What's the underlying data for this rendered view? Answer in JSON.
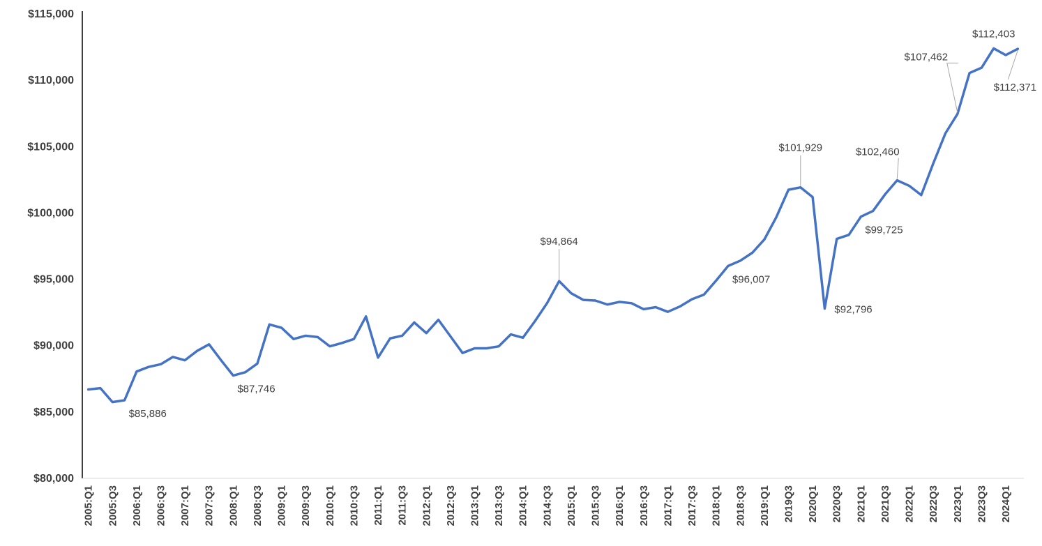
{
  "colors": {
    "series": "#4472C4",
    "axis": "#000000",
    "text": "#404040",
    "leader": "#a6a6a6"
  },
  "chart_data": {
    "type": "line",
    "title": "",
    "xlabel": "",
    "ylabel": "",
    "ylim": [
      80000,
      115000
    ],
    "yticks": [
      80000,
      85000,
      90000,
      95000,
      100000,
      105000,
      110000,
      115000
    ],
    "ytick_labels": [
      "$80,000",
      "$85,000",
      "$90,000",
      "$95,000",
      "$100,000",
      "$105,000",
      "$110,000",
      "$115,000"
    ],
    "grid": false,
    "legend": "none",
    "x": [
      "2005:Q1",
      "2005:Q2",
      "2005:Q3",
      "2005:Q4",
      "2006:Q1",
      "2006:Q2",
      "2006:Q3",
      "2006:Q4",
      "2007:Q1",
      "2007:Q2",
      "2007:Q3",
      "2007:Q4",
      "2008:Q1",
      "2008:Q2",
      "2008:Q3",
      "2008:Q4",
      "2009:Q1",
      "2009:Q2",
      "2009:Q3",
      "2009:Q4",
      "2010:Q1",
      "2010:Q2",
      "2010:Q3",
      "2010:Q4",
      "2011:Q1",
      "2011:Q2",
      "2011:Q3",
      "2011:Q4",
      "2012:Q1",
      "2012:Q2",
      "2012:Q3",
      "2012:Q4",
      "2013:Q1",
      "2013:Q2",
      "2013:Q3",
      "2013:Q4",
      "2014:Q1",
      "2014:Q2",
      "2014:Q3",
      "2014:Q4",
      "2015:Q1",
      "2015:Q2",
      "2015:Q3",
      "2015:Q4",
      "2016:Q1",
      "2016:Q2",
      "2016:Q3",
      "2016:Q4",
      "2017:Q1",
      "2017:Q2",
      "2017:Q3",
      "2017:Q4",
      "2018:Q1",
      "2018:Q2",
      "2018:Q3",
      "2018:Q4",
      "2019:Q1",
      "2019Q2",
      "2019Q3",
      "2019Q4",
      "2020Q1",
      "2020Q2",
      "2020Q3",
      "2020Q4",
      "2021Q1",
      "2021Q2",
      "2021Q3",
      "2021Q4",
      "2022Q1",
      "2022Q2",
      "2022Q3",
      "2022Q4",
      "2023Q1",
      "2023Q2",
      "2023Q3",
      "2023Q4",
      "2024Q1",
      "2024Q2"
    ],
    "tick_labels": [
      "2005:Q1",
      "",
      "2005:Q3",
      "",
      "2006:Q1",
      "",
      "2006:Q3",
      "",
      "2007:Q1",
      "",
      "2007:Q3",
      "",
      "2008:Q1",
      "",
      "2008:Q3",
      "",
      "2009:Q1",
      "",
      "2009:Q3",
      "",
      "2010:Q1",
      "",
      "2010:Q3",
      "",
      "2011:Q1",
      "",
      "2011:Q3",
      "",
      "2012:Q1",
      "",
      "2012:Q3",
      "",
      "2013:Q1",
      "",
      "2013:Q3",
      "",
      "2014:Q1",
      "",
      "2014:Q3",
      "",
      "2015:Q1",
      "",
      "2015:Q3",
      "",
      "2016:Q1",
      "",
      "2016:Q3",
      "",
      "2017:Q1",
      "",
      "2017:Q3",
      "",
      "2018:Q1",
      "",
      "2018:Q3",
      "",
      "2019:Q1",
      "",
      "2019Q3",
      "",
      "2020Q1",
      "",
      "2020Q3",
      "",
      "2021Q1",
      "",
      "2021Q3",
      "",
      "2022Q1",
      "",
      "2022Q3",
      "",
      "2023Q1",
      "",
      "2023Q3",
      "",
      "2024Q1",
      ""
    ],
    "series": [
      {
        "name": "",
        "color": "#4472C4",
        "values": [
          86700,
          86800,
          85750,
          85886,
          88050,
          88400,
          88600,
          89150,
          88900,
          89600,
          90100,
          88900,
          87746,
          88000,
          88650,
          91600,
          91350,
          90500,
          90750,
          90650,
          89950,
          90200,
          90500,
          92200,
          89100,
          90550,
          90750,
          91750,
          90950,
          91950,
          90700,
          89450,
          89800,
          89800,
          89950,
          90850,
          90600,
          91850,
          93200,
          94864,
          93950,
          93450,
          93400,
          93100,
          93300,
          93200,
          92750,
          92900,
          92550,
          92950,
          93500,
          93850,
          94900,
          96007,
          96400,
          97000,
          98000,
          99700,
          101750,
          101929,
          101200,
          92796,
          98050,
          98350,
          99725,
          100150,
          101400,
          102460,
          102050,
          101350,
          103750,
          106000,
          107462,
          110550,
          110950,
          112403,
          111900,
          112371
        ]
      }
    ],
    "annotations": [
      {
        "index": 3,
        "text": "$85,886",
        "pos": "below-right"
      },
      {
        "index": 12,
        "text": "$87,746",
        "pos": "below-right"
      },
      {
        "index": 39,
        "text": "$94,864",
        "pos": "above",
        "leader": true
      },
      {
        "index": 53,
        "text": "$96,007",
        "pos": "below-right"
      },
      {
        "index": 59,
        "text": "$101,929",
        "pos": "above",
        "leader": true
      },
      {
        "index": 61,
        "text": "$92,796",
        "pos": "right"
      },
      {
        "index": 64,
        "text": "$99,725",
        "pos": "below-right"
      },
      {
        "index": 67,
        "text": "$102,460",
        "pos": "above-left",
        "leader": true
      },
      {
        "index": 72,
        "text": "$107,462",
        "pos": "above-left",
        "leader": true
      },
      {
        "index": 75,
        "text": "$112,403",
        "pos": "above"
      },
      {
        "index": 77,
        "text": "$112,371",
        "pos": "below-left",
        "leader": true
      }
    ]
  }
}
